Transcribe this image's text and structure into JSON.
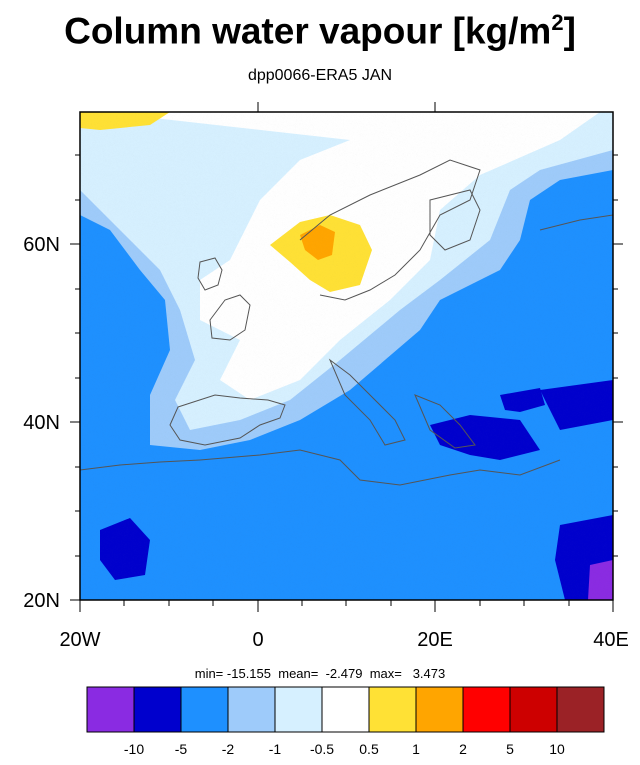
{
  "title": "Column water vapour [kg/m",
  "title_sup": "2",
  "title_end": "]",
  "subtitle": "dpp0066-ERA5 JAN",
  "axes": {
    "lat_labels": [
      "60N",
      "40N",
      "20N"
    ],
    "lon_labels": [
      "20W",
      "0",
      "20E",
      "40E"
    ]
  },
  "stats": {
    "min_label": "min=",
    "min": "-15.155",
    "mean_label": "mean=",
    "mean": "-2.479",
    "max_label": "max=",
    "max": "3.473"
  },
  "colorbar": {
    "colors": [
      "#8a2be2",
      "#0000cd",
      "#1e90ff",
      "#9ecbfa",
      "#d6f0ff",
      "#ffffff",
      "#ffe135",
      "#ffa500",
      "#ff0000",
      "#cd0000",
      "#9b2226"
    ],
    "labels": [
      "-10",
      "-5",
      "-2",
      "-1",
      "-0.5",
      "0.5",
      "1",
      "2",
      "5",
      "10"
    ]
  }
}
